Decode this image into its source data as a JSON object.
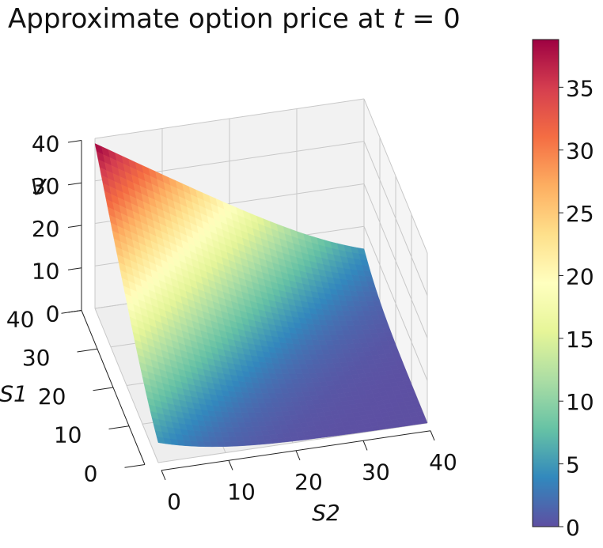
{
  "chart_data": {
    "type": "surface",
    "title": "Approximate option price at ",
    "title_var": "t",
    "title_suffix": " = 0",
    "xlabel": "S2",
    "ylabel": "S1",
    "zlabel": "V",
    "x_ticks": [
      "0",
      "10",
      "20",
      "30",
      "40"
    ],
    "y_ticks": [
      "0",
      "10",
      "20",
      "30",
      "40"
    ],
    "z_ticks": [
      "0",
      "10",
      "20",
      "30",
      "40"
    ],
    "xlim": [
      0,
      40
    ],
    "ylim": [
      0,
      40
    ],
    "zlim": [
      0,
      40
    ],
    "grid": true,
    "surface": {
      "description_values": "V(S1,S2) approx max(S1 - S2, 0) smoothed",
      "corners": {
        "S1_0_S2_0": 0.0,
        "S1_40_S2_0": 38.8,
        "S1_0_S2_40": 0.0,
        "S1_40_S2_40": 7.0
      }
    },
    "colorbar": {
      "colormap": "Spectral_r",
      "ticks": [
        "0",
        "5",
        "10",
        "15",
        "20",
        "25",
        "30",
        "35"
      ],
      "range": [
        0,
        38.8
      ]
    }
  }
}
